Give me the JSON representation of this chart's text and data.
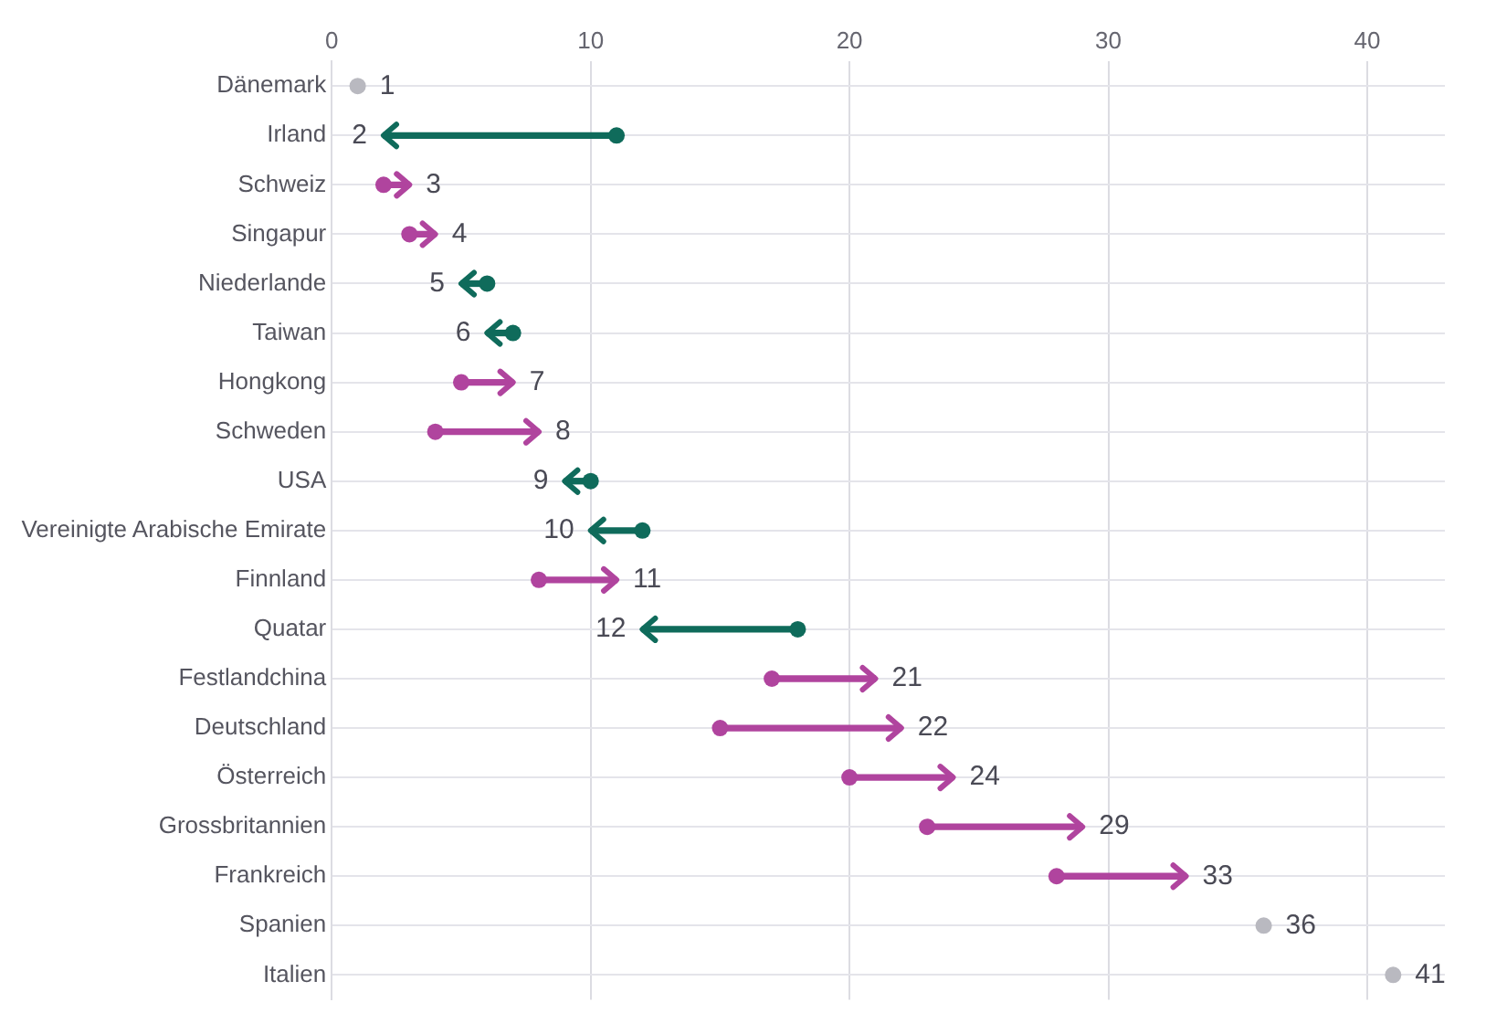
{
  "chart_data": {
    "type": "bar",
    "orientation": "horizontal",
    "categories": [
      "Dänemark",
      "Irland",
      "Schweiz",
      "Singapur",
      "Niederlande",
      "Taiwan",
      "Hongkong",
      "Schweden",
      "USA",
      "Vereinigte Arabische Emirate",
      "Finnland",
      "Quatar",
      "Festlandchina",
      "Deutschland",
      "Österreich",
      "Grossbritannien",
      "Frankreich",
      "Spanien",
      "Italien"
    ],
    "series": [
      {
        "base": [
          1,
          11,
          2,
          3,
          6,
          7,
          5,
          4,
          10,
          12,
          8,
          18,
          17,
          15,
          20,
          23,
          28,
          36,
          41
        ],
        "values": [
          0,
          -9,
          1,
          1,
          -1,
          -1,
          2,
          4,
          -1,
          -2,
          3,
          -6,
          4,
          7,
          4,
          6,
          5,
          0,
          0
        ],
        "colors": [
          "#b9b9c0",
          "#0f6b5b",
          "#b0449e",
          "#b0449e",
          "#0f6b5b",
          "#0f6b5b",
          "#b0449e",
          "#b0449e",
          "#0f6b5b",
          "#0f6b5b",
          "#b0449e",
          "#0f6b5b",
          "#b0449e",
          "#b0449e",
          "#b0449e",
          "#b0449e",
          "#b0449e",
          "#b9b9c0",
          "#b9b9c0"
        ],
        "value_labels": [
          "1",
          "2",
          "3",
          "4",
          "5",
          "6",
          "7",
          "8",
          "9",
          "10",
          "11",
          "12",
          "21",
          "22",
          "24",
          "29",
          "33",
          "36",
          "41"
        ]
      },
      {
        "type": "scatter",
        "values": [
          1,
          11,
          2,
          3,
          6,
          7,
          5,
          4,
          10,
          12,
          8,
          18,
          17,
          15,
          20,
          23,
          28,
          36,
          41
        ],
        "colors": [
          "#b9b9c0",
          "#0f6b5b",
          "#b0449e",
          "#b0449e",
          "#0f6b5b",
          "#0f6b5b",
          "#b0449e",
          "#b0449e",
          "#0f6b5b",
          "#0f6b5b",
          "#b0449e",
          "#0f6b5b",
          "#b0449e",
          "#b0449e",
          "#b0449e",
          "#b0449e",
          "#b0449e",
          "#b9b9c0",
          "#b9b9c0"
        ]
      }
    ],
    "marker": "circle",
    "xlim": [
      0,
      43
    ],
    "xticks": [
      0,
      10,
      20,
      30,
      40
    ],
    "grid": true,
    "legend": false
  }
}
